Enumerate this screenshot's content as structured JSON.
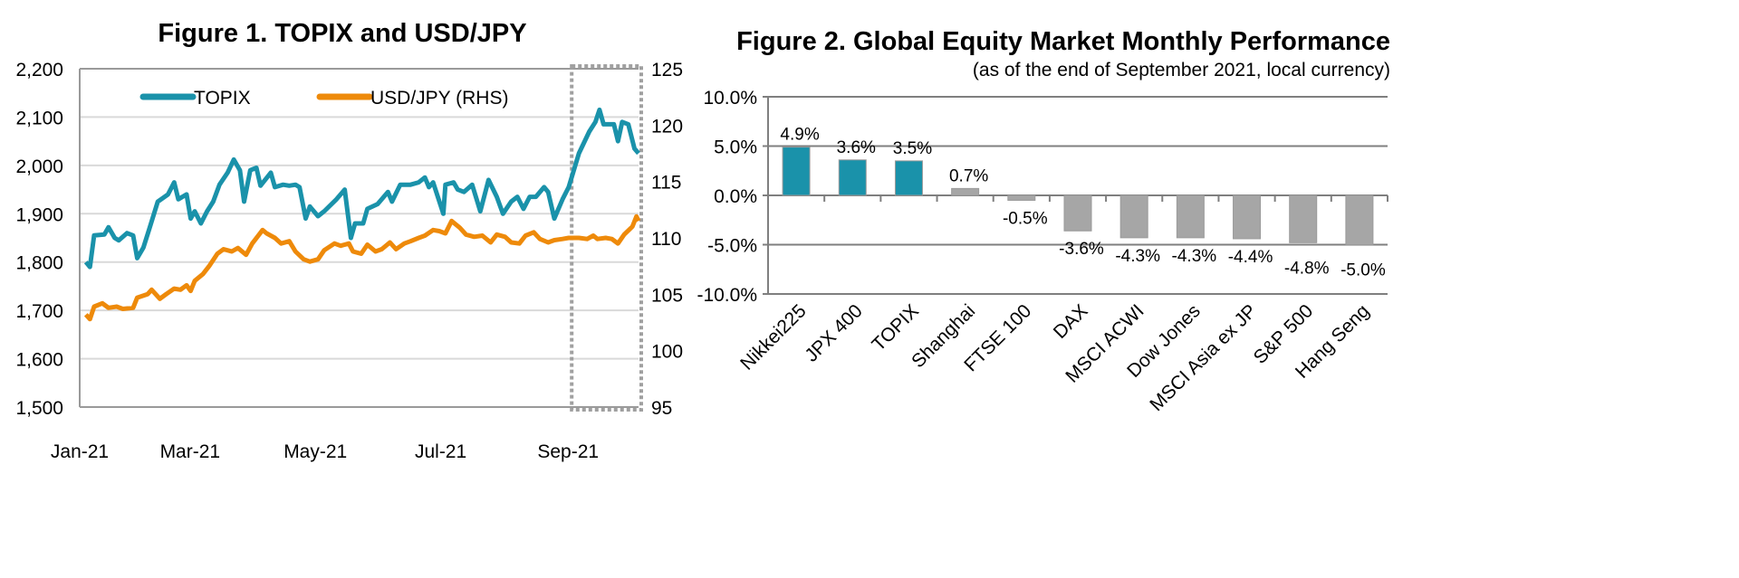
{
  "chart_data": [
    {
      "type": "line",
      "title": "Figure 1. TOPIX and USD/JPY",
      "legend_position": "top",
      "grid": true,
      "x_ticks": [
        "Jan-21",
        "Mar-21",
        "May-21",
        "Jul-21",
        "Sep-21"
      ],
      "x_tick_dates": [
        "2021-01-01",
        "2021-03-01",
        "2021-05-01",
        "2021-07-01",
        "2021-09-01"
      ],
      "xlim": [
        "2021-01-01",
        "2021-09-30"
      ],
      "y_left": {
        "lim": [
          1500,
          2200
        ],
        "ticks": [
          "1,500",
          "1,600",
          "1,700",
          "1,800",
          "1,900",
          "2,000",
          "2,100",
          "2,200"
        ]
      },
      "y_right": {
        "lim": [
          95,
          125
        ],
        "ticks": [
          "95",
          "100",
          "105",
          "110",
          "115",
          "120",
          "125"
        ]
      },
      "highlight_range": [
        "2021-09-01",
        "2021-09-30"
      ],
      "series": [
        {
          "name": "TOPIX",
          "axis": "left",
          "color": "#1a92aa",
          "points": [
            [
              "2021-01-04",
              1800
            ],
            [
              "2021-01-06",
              1790
            ],
            [
              "2021-01-08",
              1855
            ],
            [
              "2021-01-13",
              1857
            ],
            [
              "2021-01-15",
              1872
            ],
            [
              "2021-01-18",
              1850
            ],
            [
              "2021-01-20",
              1845
            ],
            [
              "2021-01-24",
              1860
            ],
            [
              "2021-01-27",
              1855
            ],
            [
              "2021-01-29",
              1808
            ],
            [
              "2021-02-01",
              1830
            ],
            [
              "2021-02-04",
              1870
            ],
            [
              "2021-02-08",
              1925
            ],
            [
              "2021-02-13",
              1940
            ],
            [
              "2021-02-16",
              1965
            ],
            [
              "2021-02-18",
              1930
            ],
            [
              "2021-02-22",
              1940
            ],
            [
              "2021-02-24",
              1890
            ],
            [
              "2021-02-26",
              1905
            ],
            [
              "2021-03-01",
              1880
            ],
            [
              "2021-03-04",
              1905
            ],
            [
              "2021-03-07",
              1925
            ],
            [
              "2021-03-10",
              1960
            ],
            [
              "2021-03-14",
              1985
            ],
            [
              "2021-03-17",
              2012
            ],
            [
              "2021-03-20",
              1990
            ],
            [
              "2021-03-22",
              1925
            ],
            [
              "2021-03-25",
              1990
            ],
            [
              "2021-03-28",
              1995
            ],
            [
              "2021-03-30",
              1958
            ],
            [
              "2021-04-04",
              1985
            ],
            [
              "2021-04-06",
              1955
            ],
            [
              "2021-04-10",
              1960
            ],
            [
              "2021-04-13",
              1958
            ],
            [
              "2021-04-16",
              1960
            ],
            [
              "2021-04-18",
              1955
            ],
            [
              "2021-04-21",
              1890
            ],
            [
              "2021-04-23",
              1915
            ],
            [
              "2021-04-27",
              1895
            ],
            [
              "2021-04-30",
              1905
            ],
            [
              "2021-05-06",
              1930
            ],
            [
              "2021-05-10",
              1950
            ],
            [
              "2021-05-13",
              1850
            ],
            [
              "2021-05-15",
              1880
            ],
            [
              "2021-05-19",
              1880
            ],
            [
              "2021-05-21",
              1910
            ],
            [
              "2021-05-26",
              1920
            ],
            [
              "2021-05-31",
              1945
            ],
            [
              "2021-06-02",
              1925
            ],
            [
              "2021-06-06",
              1960
            ],
            [
              "2021-06-11",
              1960
            ],
            [
              "2021-06-15",
              1965
            ],
            [
              "2021-06-18",
              1975
            ],
            [
              "2021-06-20",
              1955
            ],
            [
              "2021-06-22",
              1965
            ],
            [
              "2021-06-27",
              1900
            ],
            [
              "2021-06-28",
              1960
            ],
            [
              "2021-07-02",
              1965
            ],
            [
              "2021-07-04",
              1950
            ],
            [
              "2021-07-07",
              1945
            ],
            [
              "2021-07-11",
              1960
            ],
            [
              "2021-07-15",
              1905
            ],
            [
              "2021-07-19",
              1970
            ],
            [
              "2021-07-23",
              1935
            ],
            [
              "2021-07-26",
              1900
            ],
            [
              "2021-07-30",
              1925
            ],
            [
              "2021-08-02",
              1935
            ],
            [
              "2021-08-05",
              1910
            ],
            [
              "2021-08-08",
              1935
            ],
            [
              "2021-08-11",
              1935
            ],
            [
              "2021-08-15",
              1955
            ],
            [
              "2021-08-17",
              1945
            ],
            [
              "2021-08-20",
              1890
            ],
            [
              "2021-08-24",
              1930
            ],
            [
              "2021-08-27",
              1955
            ],
            [
              "2021-09-01",
              2025
            ],
            [
              "2021-09-06",
              2070
            ],
            [
              "2021-09-09",
              2090
            ],
            [
              "2021-09-11",
              2115
            ],
            [
              "2021-09-13",
              2085
            ],
            [
              "2021-09-18",
              2085
            ],
            [
              "2021-09-20",
              2050
            ],
            [
              "2021-09-22",
              2090
            ],
            [
              "2021-09-25",
              2085
            ],
            [
              "2021-09-28",
              2035
            ],
            [
              "2021-09-30",
              2025
            ]
          ]
        },
        {
          "name": "USD/JPY (RHS)",
          "axis": "right",
          "color": "#ee8a0a",
          "points": [
            [
              "2021-01-04",
              103.2
            ],
            [
              "2021-01-06",
              102.8
            ],
            [
              "2021-01-08",
              103.9
            ],
            [
              "2021-01-12",
              104.2
            ],
            [
              "2021-01-15",
              103.8
            ],
            [
              "2021-01-19",
              103.9
            ],
            [
              "2021-01-22",
              103.7
            ],
            [
              "2021-01-27",
              103.8
            ],
            [
              "2021-01-29",
              104.7
            ],
            [
              "2021-02-03",
              105.0
            ],
            [
              "2021-02-05",
              105.4
            ],
            [
              "2021-02-09",
              104.6
            ],
            [
              "2021-02-12",
              105.0
            ],
            [
              "2021-02-16",
              105.5
            ],
            [
              "2021-02-19",
              105.4
            ],
            [
              "2021-02-22",
              105.8
            ],
            [
              "2021-02-24",
              105.3
            ],
            [
              "2021-02-26",
              106.2
            ],
            [
              "2021-03-02",
              106.8
            ],
            [
              "2021-03-05",
              107.5
            ],
            [
              "2021-03-09",
              108.6
            ],
            [
              "2021-03-12",
              109.0
            ],
            [
              "2021-03-16",
              108.8
            ],
            [
              "2021-03-19",
              109.1
            ],
            [
              "2021-03-23",
              108.5
            ],
            [
              "2021-03-26",
              109.5
            ],
            [
              "2021-03-31",
              110.7
            ],
            [
              "2021-04-02",
              110.4
            ],
            [
              "2021-04-06",
              110.0
            ],
            [
              "2021-04-09",
              109.5
            ],
            [
              "2021-04-13",
              109.7
            ],
            [
              "2021-04-16",
              108.8
            ],
            [
              "2021-04-20",
              108.1
            ],
            [
              "2021-04-23",
              107.9
            ],
            [
              "2021-04-27",
              108.1
            ],
            [
              "2021-04-30",
              108.9
            ],
            [
              "2021-05-05",
              109.5
            ],
            [
              "2021-05-08",
              109.3
            ],
            [
              "2021-05-12",
              109.5
            ],
            [
              "2021-05-14",
              108.8
            ],
            [
              "2021-05-18",
              108.6
            ],
            [
              "2021-05-21",
              109.4
            ],
            [
              "2021-05-25",
              108.8
            ],
            [
              "2021-05-28",
              109.0
            ],
            [
              "2021-06-01",
              109.6
            ],
            [
              "2021-06-04",
              109.0
            ],
            [
              "2021-06-08",
              109.5
            ],
            [
              "2021-06-11",
              109.7
            ],
            [
              "2021-06-15",
              110.0
            ],
            [
              "2021-06-18",
              110.2
            ],
            [
              "2021-06-22",
              110.7
            ],
            [
              "2021-06-25",
              110.6
            ],
            [
              "2021-06-28",
              110.4
            ],
            [
              "2021-07-01",
              111.5
            ],
            [
              "2021-07-05",
              110.9
            ],
            [
              "2021-07-08",
              110.3
            ],
            [
              "2021-07-12",
              110.1
            ],
            [
              "2021-07-16",
              110.2
            ],
            [
              "2021-07-20",
              109.6
            ],
            [
              "2021-07-23",
              110.3
            ],
            [
              "2021-07-27",
              110.1
            ],
            [
              "2021-07-30",
              109.6
            ],
            [
              "2021-08-03",
              109.5
            ],
            [
              "2021-08-06",
              110.2
            ],
            [
              "2021-08-10",
              110.5
            ],
            [
              "2021-08-13",
              109.9
            ],
            [
              "2021-08-17",
              109.6
            ],
            [
              "2021-08-20",
              109.8
            ],
            [
              "2021-08-24",
              109.9
            ],
            [
              "2021-08-27",
              110.0
            ],
            [
              "2021-09-01",
              110.0
            ],
            [
              "2021-09-05",
              109.9
            ],
            [
              "2021-09-08",
              110.2
            ],
            [
              "2021-09-10",
              109.9
            ],
            [
              "2021-09-14",
              110.0
            ],
            [
              "2021-09-17",
              109.9
            ],
            [
              "2021-09-20",
              109.5
            ],
            [
              "2021-09-23",
              110.3
            ],
            [
              "2021-09-27",
              111.0
            ],
            [
              "2021-09-29",
              111.9
            ],
            [
              "2021-09-30",
              111.5
            ]
          ]
        }
      ]
    },
    {
      "type": "bar",
      "title": "Figure 2. Global Equity Market Monthly Performance",
      "subtitle": "(as of the end of September 2021, local currency)",
      "ylim": [
        -10,
        10
      ],
      "y_ticks": [
        "-10.0%",
        "-5.0%",
        "0.0%",
        "5.0%",
        "10.0%"
      ],
      "grid": true,
      "categories": [
        "Nikkei225",
        "JPX 400",
        "TOPIX",
        "Shanghai",
        "FTSE 100",
        "DAX",
        "MSCI ACWI",
        "Dow Jones",
        "MSCI Asia ex JP",
        "S&P 500",
        "Hang Seng"
      ],
      "values": [
        4.9,
        3.6,
        3.5,
        0.7,
        -0.5,
        -3.6,
        -4.3,
        -4.3,
        -4.4,
        -4.8,
        -5.0
      ],
      "labels": [
        "4.9%",
        "3.6%",
        "3.5%",
        "0.7%",
        "-0.5%",
        "-3.6%",
        "-4.3%",
        "-4.3%",
        "-4.4%",
        "-4.8%",
        "-5.0%"
      ],
      "colors": {
        "highlight": "#1a92aa",
        "other": "#a6a6a6"
      },
      "highlighted": [
        "Nikkei225",
        "JPX 400",
        "TOPIX"
      ]
    }
  ]
}
